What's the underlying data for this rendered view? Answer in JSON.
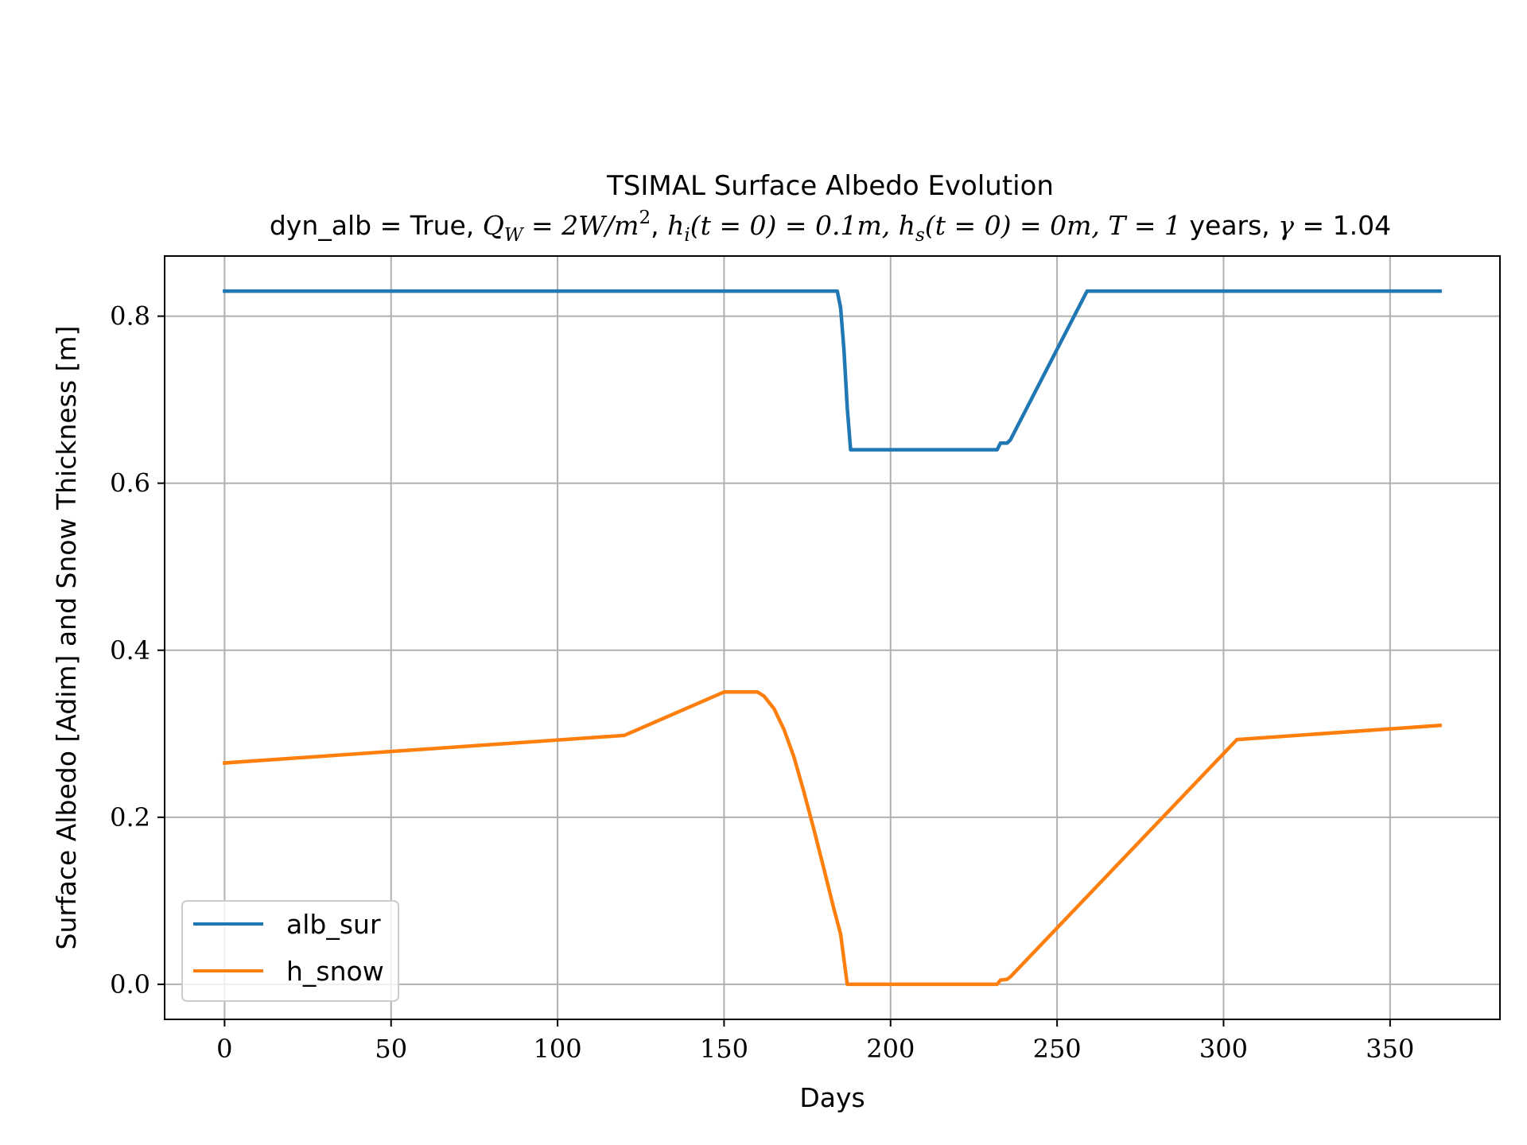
{
  "chart_data": {
    "type": "line",
    "title": "TSIMAL Surface Albedo Evolution",
    "subtitle_parts": {
      "p1": "dyn_alb = True, ",
      "p2": "Q",
      "p2_sub": "W",
      "p3": " = 2W/m",
      "p3_sup": "2",
      "p4": ", ",
      "p5": "h",
      "p5_sub": "i",
      "p6": "(t = 0) = 0.1m, ",
      "p7": "h",
      "p7_sub": "s",
      "p8": "(t = 0) = 0m, T = 1",
      "p9": " years, ",
      "p10": "γ",
      "p11": " = 1.04"
    },
    "xlabel": "Days",
    "ylabel": "Surface Albedo [Adim] and Snow Thickness [m]",
    "xlim": [
      -18,
      383
    ],
    "ylim": [
      -0.042,
      0.872
    ],
    "xticks": [
      0,
      50,
      100,
      150,
      200,
      250,
      300,
      350
    ],
    "xtick_labels": [
      "0",
      "50",
      "100",
      "150",
      "200",
      "250",
      "300",
      "350"
    ],
    "yticks": [
      0.0,
      0.2,
      0.4,
      0.6,
      0.8
    ],
    "ytick_labels": [
      "0.0",
      "0.2",
      "0.4",
      "0.6",
      "0.8"
    ],
    "grid": true,
    "legend_position": "lower-left",
    "series": [
      {
        "name": "alb_sur",
        "color": "#1f77b4",
        "points": [
          [
            0,
            0.83
          ],
          [
            184,
            0.83
          ],
          [
            185,
            0.81
          ],
          [
            186,
            0.76
          ],
          [
            187,
            0.69
          ],
          [
            188,
            0.64
          ],
          [
            232,
            0.64
          ],
          [
            233,
            0.648
          ],
          [
            235,
            0.648
          ],
          [
            236,
            0.652
          ],
          [
            259,
            0.83
          ],
          [
            365,
            0.83
          ]
        ]
      },
      {
        "name": "h_snow",
        "color": "#ff7f0e",
        "points": [
          [
            0,
            0.265
          ],
          [
            120,
            0.298
          ],
          [
            150,
            0.35
          ],
          [
            160,
            0.35
          ],
          [
            162,
            0.345
          ],
          [
            165,
            0.33
          ],
          [
            168,
            0.305
          ],
          [
            171,
            0.272
          ],
          [
            174,
            0.23
          ],
          [
            177,
            0.185
          ],
          [
            180,
            0.138
          ],
          [
            183,
            0.09
          ],
          [
            185,
            0.06
          ],
          [
            186,
            0.03
          ],
          [
            187,
            0.0
          ],
          [
            232,
            0.0
          ],
          [
            233,
            0.005
          ],
          [
            235,
            0.006
          ],
          [
            236,
            0.009
          ],
          [
            304,
            0.293
          ],
          [
            365,
            0.31
          ]
        ]
      }
    ]
  }
}
